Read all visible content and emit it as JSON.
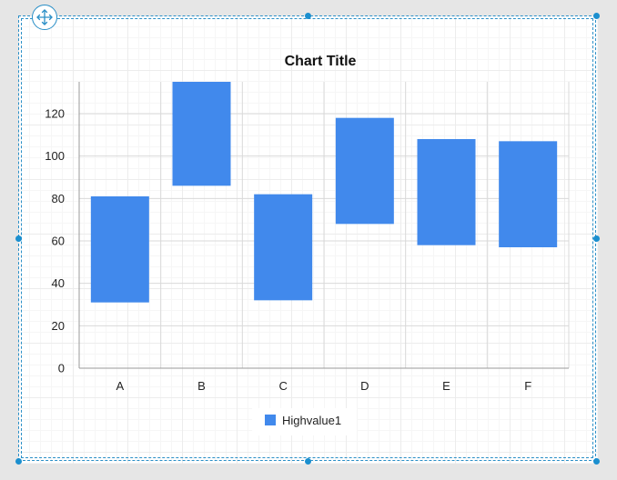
{
  "chart_data": {
    "type": "bar",
    "subtype": "floating-range",
    "title": "Chart Title",
    "categories": [
      "A",
      "B",
      "C",
      "D",
      "E",
      "F"
    ],
    "series": [
      {
        "name": "Highvalue1",
        "low": [
          31,
          86,
          32,
          68,
          58,
          57
        ],
        "high": [
          81,
          136,
          82,
          118,
          108,
          107
        ]
      }
    ],
    "ylim": [
      0,
      135
    ],
    "yticks": [
      0,
      20,
      40,
      60,
      80,
      100,
      120
    ],
    "grid": true,
    "legend_position": "bottom",
    "color": "#4189ec"
  }
}
